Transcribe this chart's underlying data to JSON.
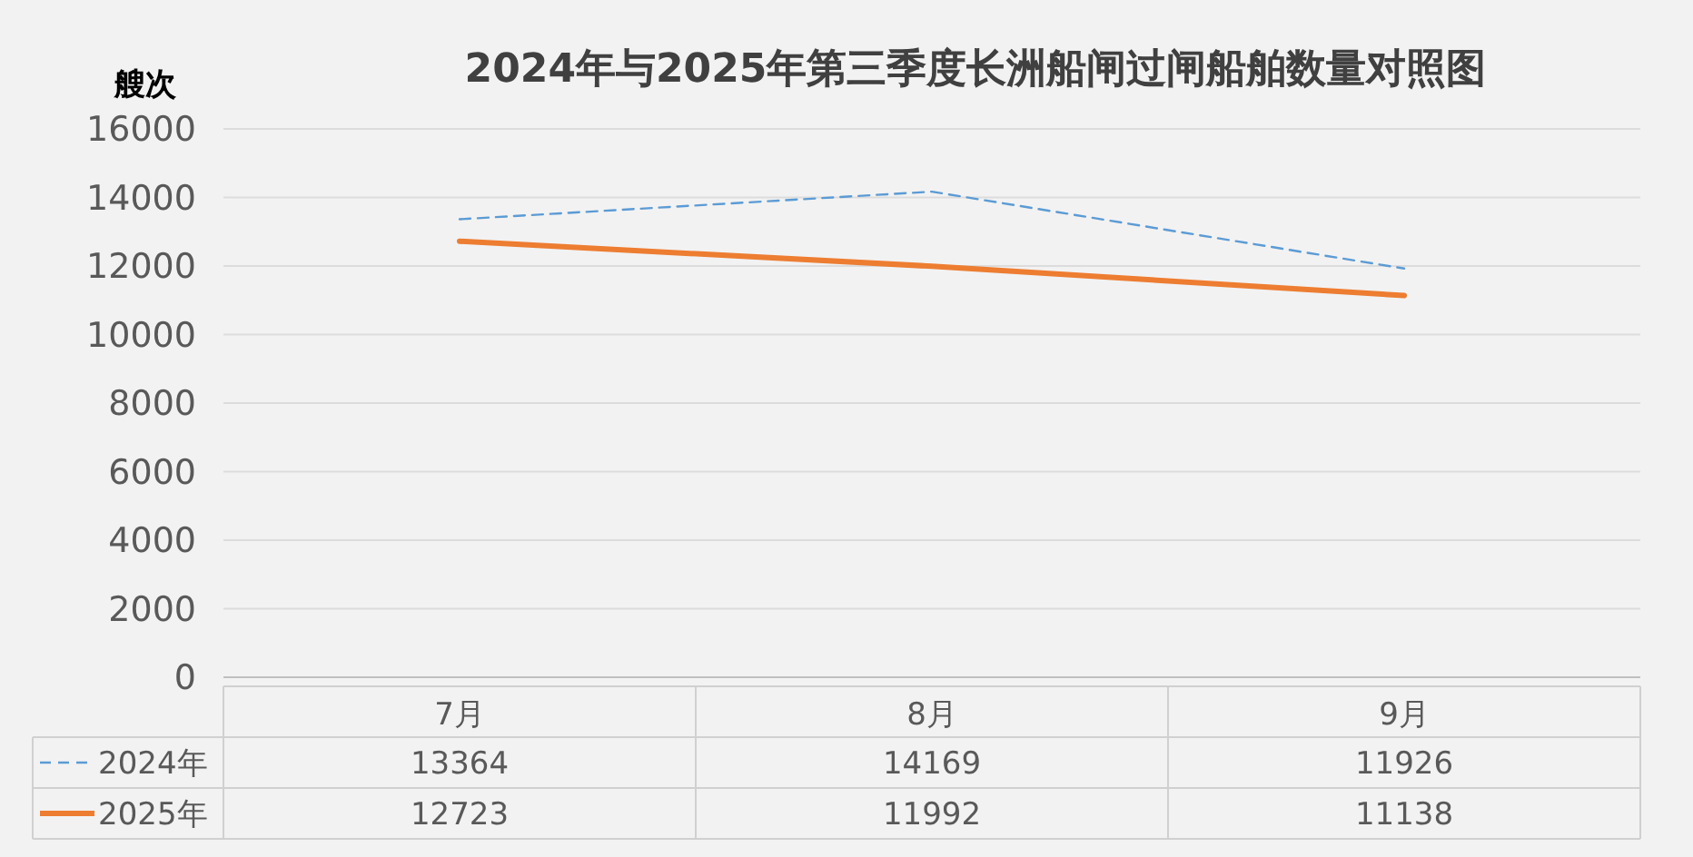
{
  "chart_data": {
    "type": "line",
    "title": "2024年与2025年第三季度长洲船闸过闸船舶数量对照图",
    "ylabel": "艘次",
    "categories": [
      "7月",
      "8月",
      "9月"
    ],
    "series": [
      {
        "name": "2024年",
        "color": "#5b9bd5",
        "values": [
          13364,
          14169,
          11926
        ],
        "line_style": "dashed"
      },
      {
        "name": "2025年",
        "color": "#ed7d31",
        "values": [
          12723,
          11992,
          11138
        ],
        "line_style": "solid"
      }
    ],
    "ylim": [
      0,
      16000
    ],
    "yticks": [
      0,
      2000,
      4000,
      6000,
      8000,
      10000,
      12000,
      14000,
      16000
    ],
    "grid": "y",
    "legend": "bottom",
    "data_labels": true,
    "marker": "none"
  }
}
